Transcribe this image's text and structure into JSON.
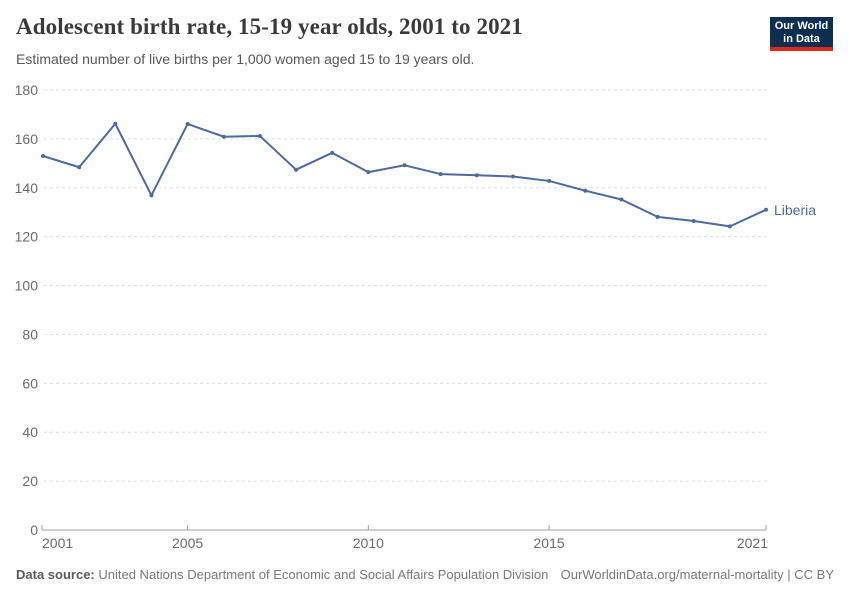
{
  "header": {
    "title": "Adolescent birth rate, 15-19 year olds, 2001 to 2021",
    "subtitle": "Estimated number of live births per 1,000 women aged 15 to 19 years old."
  },
  "logo": {
    "line1": "Our World",
    "line2": "in Data",
    "bg_color": "#0d2e4e",
    "accent_color": "#dc2a20"
  },
  "footer": {
    "source_label": "Data source:",
    "source_text": " United Nations Department of Economic and Social Affairs Population Division",
    "link_text": "OurWorldinData.org/maternal-mortality | CC BY"
  },
  "chart_data": {
    "type": "line",
    "title": "Adolescent birth rate, 15-19 year olds, 2001 to 2021",
    "subtitle": "Estimated number of live births per 1,000 women aged 15 to 19 years old.",
    "xlabel": "",
    "ylabel": "",
    "x": [
      2001,
      2002,
      2003,
      2004,
      2005,
      2006,
      2007,
      2008,
      2009,
      2010,
      2011,
      2012,
      2013,
      2014,
      2015,
      2016,
      2017,
      2018,
      2019,
      2020,
      2021
    ],
    "series": [
      {
        "name": "Liberia",
        "color": "#4C6A9C",
        "values": [
          153.0,
          148.4,
          166.2,
          136.9,
          166.1,
          160.9,
          161.2,
          147.4,
          154.3,
          146.4,
          149.2,
          145.6,
          145.1,
          144.6,
          142.8,
          138.8,
          135.2,
          128.1,
          126.4,
          124.2,
          131.0
        ]
      }
    ],
    "xlim": [
      2001,
      2021
    ],
    "ylim": [
      0,
      180
    ],
    "xticks": [
      2001,
      2005,
      2010,
      2015,
      2021
    ],
    "yticks": [
      0,
      20,
      40,
      60,
      80,
      100,
      120,
      140,
      160,
      180
    ],
    "grid": "horizontal-dashed",
    "legend": "end-of-line-label"
  }
}
